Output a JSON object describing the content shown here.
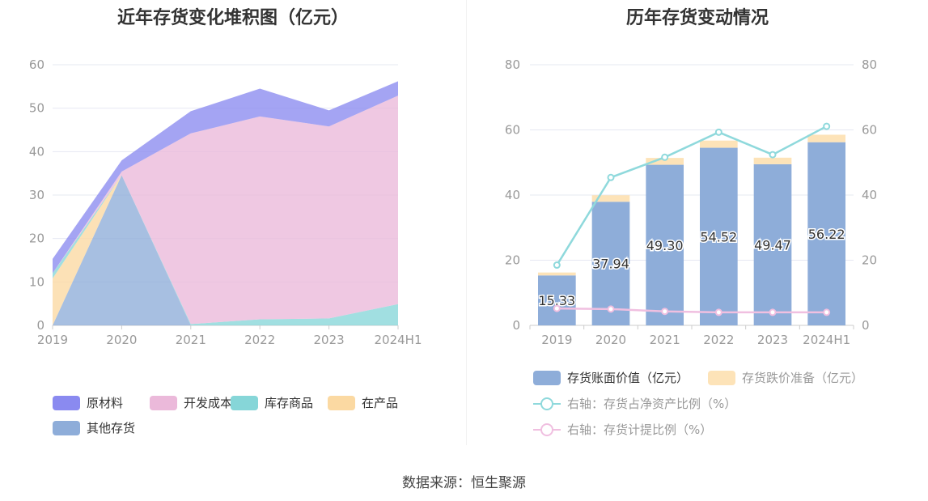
{
  "source_text": "数据来源：恒生聚源",
  "chart_data": [
    {
      "type": "area",
      "title": "近年存货变化堆积图（亿元）",
      "stacked": true,
      "categories": [
        "2019",
        "2020",
        "2021",
        "2022",
        "2023",
        "2024H1"
      ],
      "ylim": [
        0,
        60
      ],
      "yticks": [
        "0",
        "10",
        "20",
        "30",
        "40",
        "50",
        "60"
      ],
      "legend_position": "bottom",
      "series": [
        {
          "name": "其他存货",
          "color": "#8eadd9",
          "values": [
            0,
            34.6,
            0,
            0,
            0,
            0
          ]
        },
        {
          "name": "在产品",
          "color": "#fbd9a2",
          "values": [
            10.8,
            0,
            0,
            0,
            0,
            0
          ]
        },
        {
          "name": "库存商品",
          "color": "#86d6d8",
          "values": [
            1.2,
            0,
            0.3,
            1.4,
            1.6,
            4.9
          ]
        },
        {
          "name": "开发成本",
          "color": "#ebb9da",
          "values": [
            0,
            0.8,
            43.9,
            46.7,
            44.2,
            48.0
          ]
        },
        {
          "name": "原材料",
          "color": "#8a8af0",
          "values": [
            3.3,
            2.6,
            5.1,
            6.4,
            3.7,
            3.3
          ]
        }
      ],
      "legend_order": [
        "原材料",
        "开发成本",
        "库存商品",
        "在产品",
        "其他存货"
      ]
    },
    {
      "type": "bar",
      "title": "历年存货变动情况",
      "categories": [
        "2019",
        "2020",
        "2021",
        "2022",
        "2023",
        "2024H1"
      ],
      "ylim": [
        0,
        80
      ],
      "yticks": [
        "0",
        "20",
        "40",
        "60",
        "80"
      ],
      "y2lim": [
        0,
        80
      ],
      "y2ticks": [
        "0",
        "20",
        "40",
        "60",
        "80"
      ],
      "legend_position": "bottom",
      "series": [
        {
          "name": "存货账面价值（亿元）",
          "kind": "bar",
          "stack": "a",
          "color": "#8eadd9",
          "values": [
            15.33,
            37.94,
            49.3,
            54.52,
            49.47,
            56.22
          ],
          "labels": [
            "15.33",
            "37.94",
            "49.30",
            "54.52",
            "49.47",
            "56.22"
          ]
        },
        {
          "name": "存货跌价准备（亿元）",
          "kind": "bar",
          "stack": "a",
          "color": "#fde3b8",
          "values": [
            0.9,
            2.0,
            2.1,
            2.2,
            2.0,
            2.3
          ]
        },
        {
          "name": "右轴：存货占净资产比例（%）",
          "kind": "line",
          "axis": "right",
          "color": "#8fd9dc",
          "values": [
            18.5,
            45.4,
            51.6,
            59.3,
            52.4,
            61.1
          ]
        },
        {
          "name": "右轴：存货计提比例（%）",
          "kind": "line",
          "axis": "right",
          "color": "#f0bfe0",
          "values": [
            5.2,
            5.0,
            4.3,
            4.0,
            4.0,
            4.0
          ]
        }
      ]
    }
  ]
}
